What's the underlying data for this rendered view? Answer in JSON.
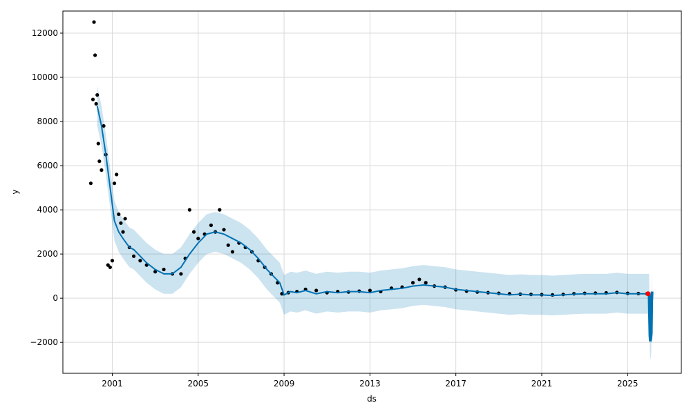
{
  "chart_data": {
    "type": "line",
    "title": "",
    "xlabel": "ds",
    "ylabel": "y",
    "grid": true,
    "legend": "none",
    "xlim": [
      1998.7,
      2027.5
    ],
    "ylim": [
      -3400,
      13000
    ],
    "x_ticks": [
      {
        "value": 2001,
        "label": "2001"
      },
      {
        "value": 2005,
        "label": "2005"
      },
      {
        "value": 2009,
        "label": "2009"
      },
      {
        "value": 2013,
        "label": "2013"
      },
      {
        "value": 2017,
        "label": "2017"
      },
      {
        "value": 2021,
        "label": "2021"
      },
      {
        "value": 2025,
        "label": "2025"
      }
    ],
    "y_ticks": [
      {
        "value": -2000,
        "label": "−2000"
      },
      {
        "value": 0,
        "label": "0"
      },
      {
        "value": 2000,
        "label": "2000"
      },
      {
        "value": 4000,
        "label": "4000"
      },
      {
        "value": 6000,
        "label": "6000"
      },
      {
        "value": 8000,
        "label": "8000"
      },
      {
        "value": 10000,
        "label": "10000"
      },
      {
        "value": 12000,
        "label": "12000"
      }
    ],
    "colors": {
      "observed": "#000000",
      "forecast": "#0072B2",
      "interval": "#0072B2",
      "highlight": "#ff0000",
      "grid": "#d9d9d9"
    },
    "series": [
      {
        "role": "forecast",
        "x": [
          2000.3,
          2000.5,
          2000.7,
          2000.9,
          2001.1,
          2001.3,
          2001.5,
          2001.8,
          2002.0,
          2002.3,
          2002.6,
          2003.0,
          2003.4,
          2003.8,
          2004.2,
          2004.6,
          2005.0,
          2005.4,
          2005.8,
          2006.2,
          2006.6,
          2007.0,
          2007.4,
          2007.8,
          2008.2,
          2008.5,
          2008.8,
          2009.0,
          2009.3,
          2009.6,
          2010.0,
          2010.5,
          2011.0,
          2011.5,
          2012.0,
          2012.5,
          2013.0,
          2013.5,
          2014.0,
          2014.5,
          2015.0,
          2015.5,
          2016.0,
          2016.5,
          2017.0,
          2017.5,
          2018.0,
          2018.5,
          2019.0,
          2019.5,
          2020.0,
          2020.5,
          2021.0,
          2021.5,
          2022.0,
          2022.5,
          2023.0,
          2023.5,
          2024.0,
          2024.5,
          2025.0,
          2025.5,
          2026.0
        ],
        "values": [
          8700,
          7800,
          6500,
          5000,
          3500,
          3000,
          2700,
          2300,
          2200,
          1900,
          1600,
          1300,
          1100,
          1100,
          1400,
          2000,
          2500,
          2900,
          3000,
          2900,
          2700,
          2500,
          2200,
          1800,
          1300,
          1000,
          700,
          150,
          300,
          250,
          350,
          200,
          300,
          250,
          300,
          300,
          250,
          350,
          400,
          450,
          550,
          600,
          550,
          500,
          400,
          350,
          300,
          250,
          200,
          150,
          180,
          150,
          150,
          120,
          150,
          180,
          200,
          200,
          200,
          250,
          200,
          200,
          200
        ]
      },
      {
        "role": "interval_upper",
        "x": [
          2000.3,
          2000.5,
          2000.7,
          2000.9,
          2001.1,
          2001.3,
          2001.5,
          2001.8,
          2002.0,
          2002.3,
          2002.6,
          2003.0,
          2003.4,
          2003.8,
          2004.2,
          2004.6,
          2005.0,
          2005.4,
          2005.8,
          2006.2,
          2006.6,
          2007.0,
          2007.4,
          2007.8,
          2008.2,
          2008.5,
          2008.8,
          2009.0,
          2009.3,
          2009.6,
          2010.0,
          2010.5,
          2011.0,
          2011.5,
          2012.0,
          2012.5,
          2013.0,
          2013.5,
          2014.0,
          2014.5,
          2015.0,
          2015.5,
          2016.0,
          2016.5,
          2017.0,
          2017.5,
          2018.0,
          2018.5,
          2019.0,
          2019.5,
          2020.0,
          2020.5,
          2021.0,
          2021.5,
          2022.0,
          2022.5,
          2023.0,
          2023.5,
          2024.0,
          2024.5,
          2025.0,
          2025.5,
          2026.0
        ],
        "values": [
          9600,
          8700,
          7400,
          5900,
          4400,
          3900,
          3600,
          3200,
          3100,
          2800,
          2500,
          2200,
          2000,
          2000,
          2300,
          2900,
          3400,
          3800,
          3900,
          3800,
          3600,
          3400,
          3100,
          2700,
          2200,
          1900,
          1600,
          1050,
          1200,
          1150,
          1250,
          1100,
          1200,
          1150,
          1200,
          1200,
          1150,
          1250,
          1300,
          1350,
          1450,
          1500,
          1450,
          1400,
          1300,
          1250,
          1200,
          1150,
          1100,
          1050,
          1080,
          1050,
          1050,
          1020,
          1050,
          1080,
          1100,
          1100,
          1100,
          1150,
          1100,
          1100,
          1100
        ]
      },
      {
        "role": "interval_lower",
        "x": [
          2000.3,
          2000.5,
          2000.7,
          2000.9,
          2001.1,
          2001.3,
          2001.5,
          2001.8,
          2002.0,
          2002.3,
          2002.6,
          2003.0,
          2003.4,
          2003.8,
          2004.2,
          2004.6,
          2005.0,
          2005.4,
          2005.8,
          2006.2,
          2006.6,
          2007.0,
          2007.4,
          2007.8,
          2008.2,
          2008.5,
          2008.8,
          2009.0,
          2009.3,
          2009.6,
          2010.0,
          2010.5,
          2011.0,
          2011.5,
          2012.0,
          2012.5,
          2013.0,
          2013.5,
          2014.0,
          2014.5,
          2015.0,
          2015.5,
          2016.0,
          2016.5,
          2017.0,
          2017.5,
          2018.0,
          2018.5,
          2019.0,
          2019.5,
          2020.0,
          2020.5,
          2021.0,
          2021.5,
          2022.0,
          2022.5,
          2023.0,
          2023.5,
          2024.0,
          2024.5,
          2025.0,
          2025.5,
          2026.0
        ],
        "values": [
          7800,
          6900,
          5600,
          4100,
          2600,
          2100,
          1800,
          1400,
          1300,
          1000,
          700,
          400,
          200,
          200,
          500,
          1100,
          1600,
          2000,
          2100,
          2000,
          1800,
          1600,
          1300,
          900,
          400,
          100,
          -200,
          -750,
          -600,
          -650,
          -550,
          -700,
          -600,
          -650,
          -600,
          -600,
          -650,
          -550,
          -500,
          -450,
          -350,
          -300,
          -350,
          -400,
          -500,
          -550,
          -600,
          -650,
          -700,
          -750,
          -720,
          -750,
          -750,
          -780,
          -750,
          -720,
          -700,
          -700,
          -700,
          -650,
          -700,
          -700,
          -700
        ]
      },
      {
        "role": "observed",
        "x": [
          2000.0,
          2000.1,
          2000.15,
          2000.2,
          2000.25,
          2000.3,
          2000.35,
          2000.4,
          2000.5,
          2000.6,
          2000.7,
          2000.8,
          2000.9,
          2001.0,
          2001.1,
          2001.2,
          2001.3,
          2001.4,
          2001.5,
          2001.6,
          2001.8,
          2002.0,
          2002.3,
          2002.6,
          2003.0,
          2003.4,
          2003.8,
          2004.2,
          2004.4,
          2004.6,
          2004.8,
          2005.0,
          2005.3,
          2005.6,
          2005.8,
          2006.0,
          2006.2,
          2006.4,
          2006.6,
          2006.9,
          2007.2,
          2007.5,
          2007.8,
          2008.1,
          2008.4,
          2008.7,
          2008.9,
          2009.2,
          2009.6,
          2010.0,
          2010.5,
          2011.0,
          2011.5,
          2012.0,
          2012.5,
          2013.0,
          2013.5,
          2014.0,
          2014.5,
          2015.0,
          2015.3,
          2015.6,
          2016.0,
          2016.5,
          2017.0,
          2017.5,
          2018.0,
          2018.5,
          2019.0,
          2019.5,
          2020.0,
          2020.5,
          2021.0,
          2021.5,
          2022.0,
          2022.5,
          2023.0,
          2023.5,
          2024.0,
          2024.5,
          2025.0,
          2025.5,
          2025.9
        ],
        "values": [
          5200,
          9000,
          12500,
          11000,
          8800,
          9200,
          7000,
          6200,
          5800,
          7800,
          6500,
          1500,
          1400,
          1700,
          5200,
          5600,
          3800,
          3400,
          3000,
          3600,
          2300,
          1900,
          1700,
          1500,
          1200,
          1300,
          1100,
          1100,
          1800,
          4000,
          3000,
          2700,
          2900,
          3300,
          3000,
          4000,
          3100,
          2400,
          2100,
          2500,
          2300,
          2100,
          1700,
          1400,
          1100,
          700,
          200,
          250,
          300,
          400,
          350,
          250,
          300,
          280,
          320,
          350,
          300,
          450,
          500,
          700,
          850,
          700,
          550,
          500,
          380,
          320,
          280,
          250,
          220,
          200,
          180,
          170,
          160,
          150,
          170,
          200,
          220,
          230,
          240,
          260,
          220,
          210,
          200
        ]
      },
      {
        "role": "forecast_tail",
        "x": [
          2026.0,
          2026.02,
          2026.04,
          2026.06,
          2026.08,
          2026.1,
          2026.12,
          2026.14
        ],
        "values": [
          200,
          -800,
          -1700,
          -1950,
          -1800,
          -1600,
          -200,
          300
        ],
        "upper": [
          1000,
          100,
          -900,
          -1100,
          -950,
          -800,
          600,
          1100
        ],
        "lower": [
          -600,
          -1600,
          -2500,
          -2800,
          -2650,
          -2400,
          -1000,
          -500
        ]
      },
      {
        "role": "highlight",
        "x": [
          2025.95
        ],
        "values": [
          200
        ]
      }
    ]
  }
}
